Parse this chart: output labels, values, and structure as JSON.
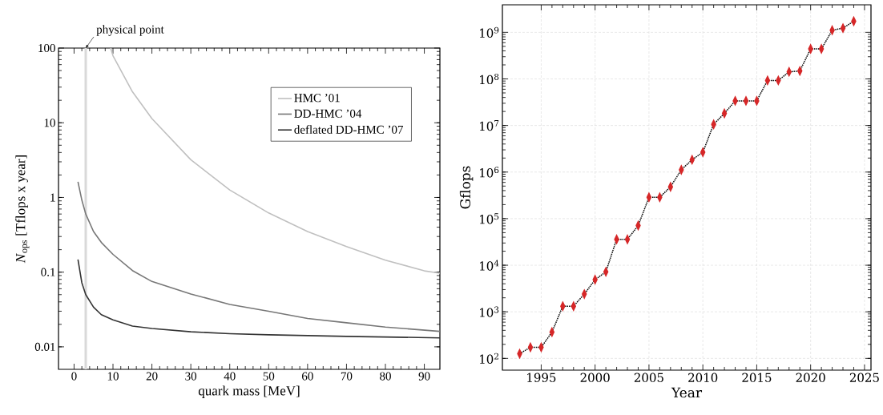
{
  "chart_data": [
    {
      "type": "line",
      "xlabel": "quark mass [MeV]",
      "ylabel": "*N*$_{ops}$ [Tflops x year]",
      "log": "y",
      "legend": "top right",
      "line_style": "solid",
      "marker": "none",
      "xlim": [
        -4,
        94
      ],
      "ylim": [
        0.005,
        100
      ],
      "xticks": [
        0,
        10,
        20,
        30,
        40,
        50,
        60,
        70,
        80,
        90
      ],
      "yticks": [
        0.01,
        0.1,
        1,
        10,
        100
      ],
      "ref_lines": [
        {
          "axis": "x",
          "value": 3,
          "label": "physical point",
          "color": "#d9d9d9"
        }
      ],
      "series": [
        {
          "name": "HMC ’01",
          "color": "#c0c0c0",
          "x": [
            9.4,
            10,
            15,
            20,
            30,
            40,
            50,
            60,
            70,
            80,
            90,
            94
          ],
          "values": [
            100,
            79,
            26,
            11.4,
            3.2,
            1.26,
            0.62,
            0.35,
            0.22,
            0.145,
            0.104,
            0.097
          ]
        },
        {
          "name": "DD-HMC ’04",
          "color": "#777777",
          "x": [
            1,
            2,
            3,
            5,
            7,
            10,
            15,
            20,
            30,
            40,
            50,
            60,
            70,
            80,
            94
          ],
          "values": [
            1.62,
            0.92,
            0.6,
            0.35,
            0.25,
            0.173,
            0.105,
            0.075,
            0.051,
            0.037,
            0.03,
            0.024,
            0.021,
            0.0184,
            0.0161
          ]
        },
        {
          "name": "deflated DD-HMC ’07",
          "color": "#333333",
          "x": [
            1,
            2,
            3,
            5,
            7,
            10,
            15,
            20,
            30,
            40,
            50,
            70,
            94
          ],
          "values": [
            0.148,
            0.072,
            0.05,
            0.034,
            0.027,
            0.023,
            0.019,
            0.0176,
            0.0159,
            0.015,
            0.0145,
            0.0138,
            0.0132
          ]
        }
      ]
    },
    {
      "type": "line",
      "xlabel": "Year",
      "ylabel": "Gflops",
      "log": "y",
      "grid": true,
      "marker": "diamond",
      "line_style": "dotted",
      "xlim": [
        1991.4,
        2025.6
      ],
      "ylim": [
        56,
        3900000000
      ],
      "xticks": [
        1995,
        2000,
        2005,
        2010,
        2015,
        2020,
        2025
      ],
      "yticks": [
        {
          "value": 100,
          "label": "10$^{2}$"
        },
        {
          "value": 1000,
          "label": "10$^{3}$"
        },
        {
          "value": 10000,
          "label": "10$^{4}$"
        },
        {
          "value": 100000,
          "label": "10$^{5}$"
        },
        {
          "value": 1000000,
          "label": "10$^{6}$"
        },
        {
          "value": 10000000,
          "label": "10$^{7}$"
        },
        {
          "value": 100000000,
          "label": "10$^{8}$"
        },
        {
          "value": 1000000000,
          "label": "10$^{9}$"
        }
      ],
      "x": [
        1993,
        1994,
        1995,
        1996,
        1997,
        1998,
        1999,
        2000,
        2001,
        2002,
        2003,
        2004,
        2005,
        2006,
        2007,
        2008,
        2009,
        2010,
        2011,
        2012,
        2013,
        2014,
        2015,
        2016,
        2017,
        2018,
        2019,
        2020,
        2021,
        2022,
        2023,
        2024
      ],
      "series": [
        {
          "color": "#d62728",
          "values": [
            126,
            173,
            173,
            366,
            1320,
            1320,
            2400,
            4900,
            7200,
            36000,
            36000,
            71000,
            287000,
            287000,
            482000,
            1120000,
            1840000,
            2660000,
            10600000,
            18200000,
            33800000,
            33800000,
            33800000,
            92700000,
            92700000,
            142000000,
            148000000,
            440000000,
            440000000,
            1110000000,
            1230000000,
            1730000000
          ]
        }
      ]
    }
  ]
}
